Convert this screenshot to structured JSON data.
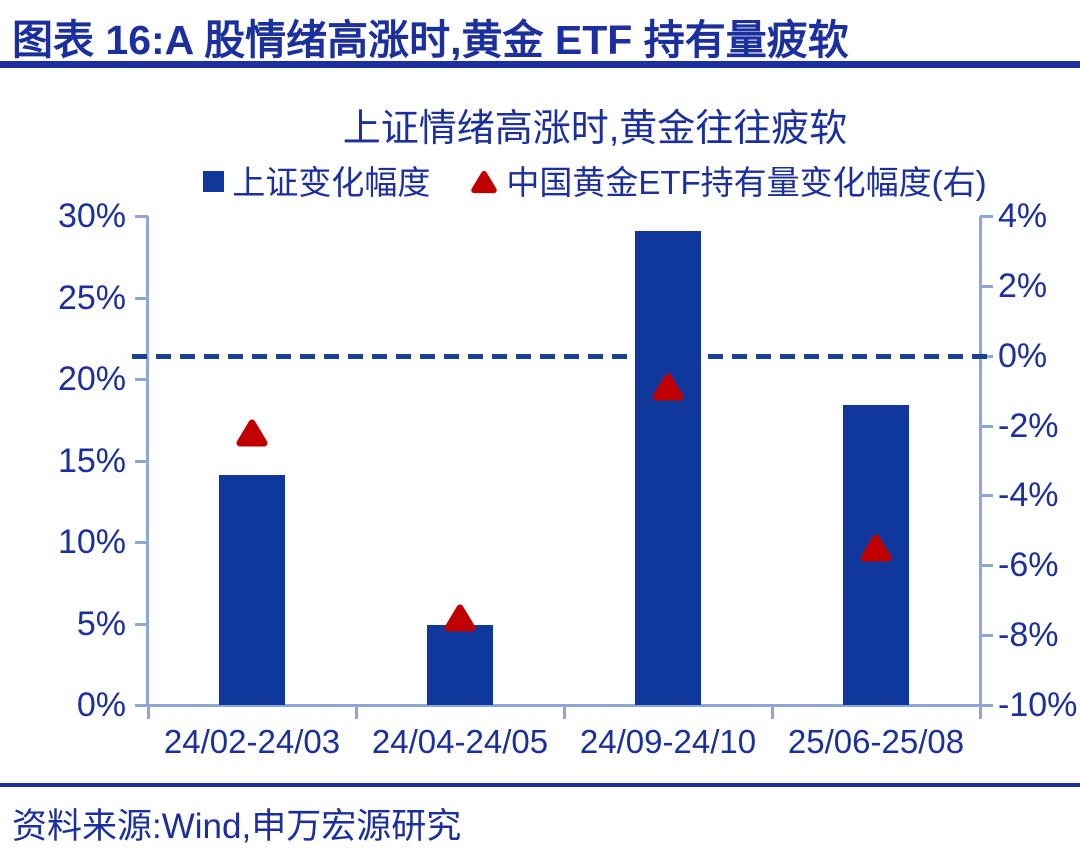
{
  "header": {
    "title": "图表 16:A 股情绪高涨时,黄金 ETF 持有量疲软"
  },
  "source": {
    "text": "资料来源:Wind,申万宏源研究"
  },
  "colors": {
    "ink": "#1B2F9E",
    "bar": "#10389C",
    "marker": "#C00000",
    "axis": "#8DA8D6",
    "dashed": "#1A4094"
  },
  "chart_data": {
    "type": "bar",
    "title": "上证情绪高涨时,黄金往往疲软",
    "categories": [
      "24/02-24/03",
      "24/04-24/05",
      "24/09-24/10",
      "25/06-25/08"
    ],
    "series": [
      {
        "name": "上证变化幅度",
        "type": "bar",
        "axis": "left",
        "marker": "square",
        "values": [
          14.1,
          4.9,
          29.1,
          18.4
        ]
      },
      {
        "name": "中国黄金ETF持有量变化幅度(右)",
        "type": "scatter",
        "axis": "right",
        "marker": "triangle",
        "values": [
          -2.2,
          -7.5,
          -0.9,
          -5.5
        ]
      }
    ],
    "left_axis": {
      "min": 0,
      "max": 30,
      "step": 5,
      "tick_labels": [
        "0%",
        "5%",
        "10%",
        "15%",
        "20%",
        "25%",
        "30%"
      ]
    },
    "right_axis": {
      "min": -10,
      "max": 4,
      "step": 2,
      "tick_labels": [
        "-10%",
        "-8%",
        "-6%",
        "-4%",
        "-2%",
        "0%",
        "2%",
        "4%"
      ]
    },
    "zero_line": {
      "axis": "right",
      "value": 0,
      "style": "dashed"
    },
    "legend_position": "top",
    "grid": false
  }
}
